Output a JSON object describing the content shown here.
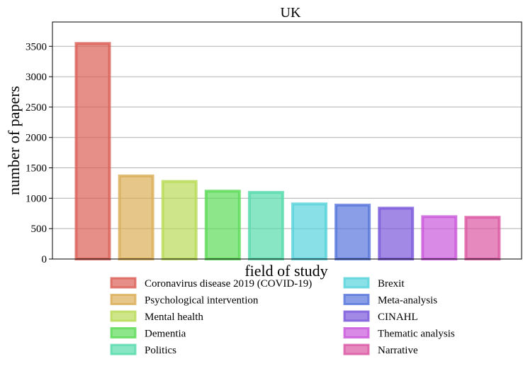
{
  "chart_data": {
    "type": "bar",
    "title": "UK",
    "xlabel": "field of study",
    "ylabel": "number of papers",
    "ylim": [
      0,
      3900
    ],
    "yticks": [
      0,
      500,
      1000,
      1500,
      2000,
      2500,
      3000,
      3500
    ],
    "grid": "horizontal",
    "legend_position": "bottom",
    "categories": [
      "Coronavirus disease 2019 (COVID-19)",
      "Psychological intervention",
      "Mental health",
      "Dementia",
      "Politics",
      "Brexit",
      "Meta-analysis",
      "CINAHL",
      "Thematic analysis",
      "Narrative"
    ],
    "values": [
      3570,
      1390,
      1300,
      1140,
      1120,
      930,
      910,
      860,
      720,
      710
    ],
    "colors": [
      "#db5f57",
      "#dbae57",
      "#b9db57",
      "#5cdb57",
      "#57dbac",
      "#57d3db",
      "#5775db",
      "#7a57db",
      "#c957db",
      "#db57a3"
    ]
  }
}
